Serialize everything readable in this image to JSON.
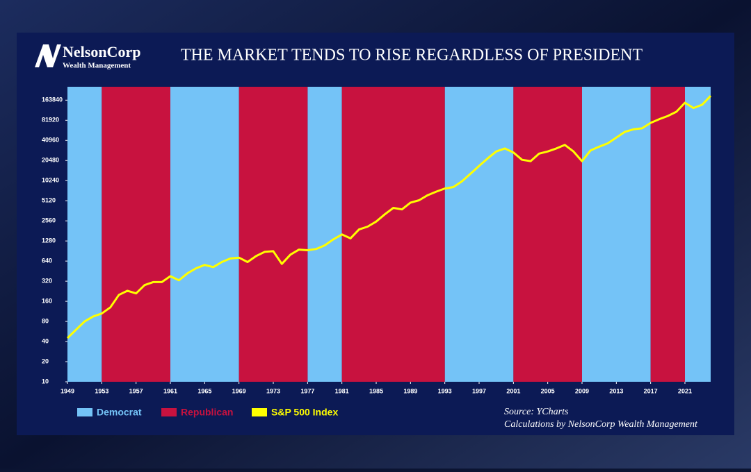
{
  "logo": {
    "name": "NelsonCorp",
    "tagline": "Wealth Management"
  },
  "chart_data": {
    "type": "line",
    "title": "THE MARKET TENDS TO RISE REGARDLESS OF PRESIDENT",
    "yscale": "log",
    "xlim": [
      1949,
      2024
    ],
    "xticks": [
      1949,
      1953,
      1957,
      1961,
      1965,
      1969,
      1973,
      1977,
      1981,
      1985,
      1989,
      1993,
      1997,
      2001,
      2005,
      2009,
      2013,
      2017,
      2021
    ],
    "ylim": [
      10,
      260000
    ],
    "yticks": [
      10,
      20,
      40,
      80,
      160,
      320,
      640,
      1280,
      2560,
      5120,
      10240,
      20480,
      40960,
      81920,
      163840
    ],
    "bands": [
      {
        "name": "Democrat",
        "color": "#74c3f7",
        "ranges": [
          [
            1949,
            1953
          ],
          [
            1961,
            1969
          ],
          [
            1977,
            1981
          ],
          [
            1993,
            2001
          ],
          [
            2009,
            2017
          ],
          [
            2021,
            2024
          ]
        ]
      },
      {
        "name": "Republican",
        "color": "#c8123f",
        "ranges": [
          [
            1953,
            1961
          ],
          [
            1969,
            1977
          ],
          [
            1981,
            1993
          ],
          [
            2001,
            2009
          ],
          [
            2017,
            2021
          ]
        ]
      }
    ],
    "x": [
      1949,
      1950,
      1951,
      1952,
      1953,
      1954,
      1955,
      1956,
      1957,
      1958,
      1959,
      1960,
      1961,
      1962,
      1963,
      1964,
      1965,
      1966,
      1967,
      1968,
      1969,
      1970,
      1971,
      1972,
      1973,
      1974,
      1975,
      1976,
      1977,
      1978,
      1979,
      1980,
      1981,
      1982,
      1983,
      1984,
      1985,
      1986,
      1987,
      1988,
      1989,
      1990,
      1991,
      1992,
      1993,
      1994,
      1995,
      1996,
      1997,
      1998,
      1999,
      2000,
      2001,
      2002,
      2003,
      2004,
      2005,
      2006,
      2007,
      2008,
      2009,
      2010,
      2011,
      2012,
      2013,
      2014,
      2015,
      2016,
      2017,
      2018,
      2019,
      2020,
      2021,
      2022,
      2023,
      2024
    ],
    "series": [
      {
        "name": "S&P 500 Index",
        "color": "#ffff00",
        "values": [
          45,
          60,
          80,
          95,
          105,
          130,
          200,
          230,
          210,
          280,
          310,
          310,
          380,
          330,
          420,
          500,
          560,
          520,
          620,
          700,
          720,
          620,
          760,
          880,
          900,
          580,
          800,
          950,
          930,
          970,
          1100,
          1350,
          1600,
          1400,
          1900,
          2100,
          2500,
          3200,
          4000,
          3800,
          4800,
          5200,
          6200,
          7000,
          7800,
          8200,
          10000,
          13000,
          17000,
          22000,
          28000,
          31000,
          27000,
          21000,
          20000,
          26000,
          28000,
          31000,
          35000,
          28000,
          20000,
          29000,
          33000,
          37000,
          45000,
          55000,
          60000,
          62000,
          75000,
          85000,
          95000,
          110000,
          150000,
          125000,
          140000,
          190000
        ]
      }
    ],
    "source": "Source: YCharts",
    "note": "Calculations by NelsonCorp Wealth Management"
  }
}
